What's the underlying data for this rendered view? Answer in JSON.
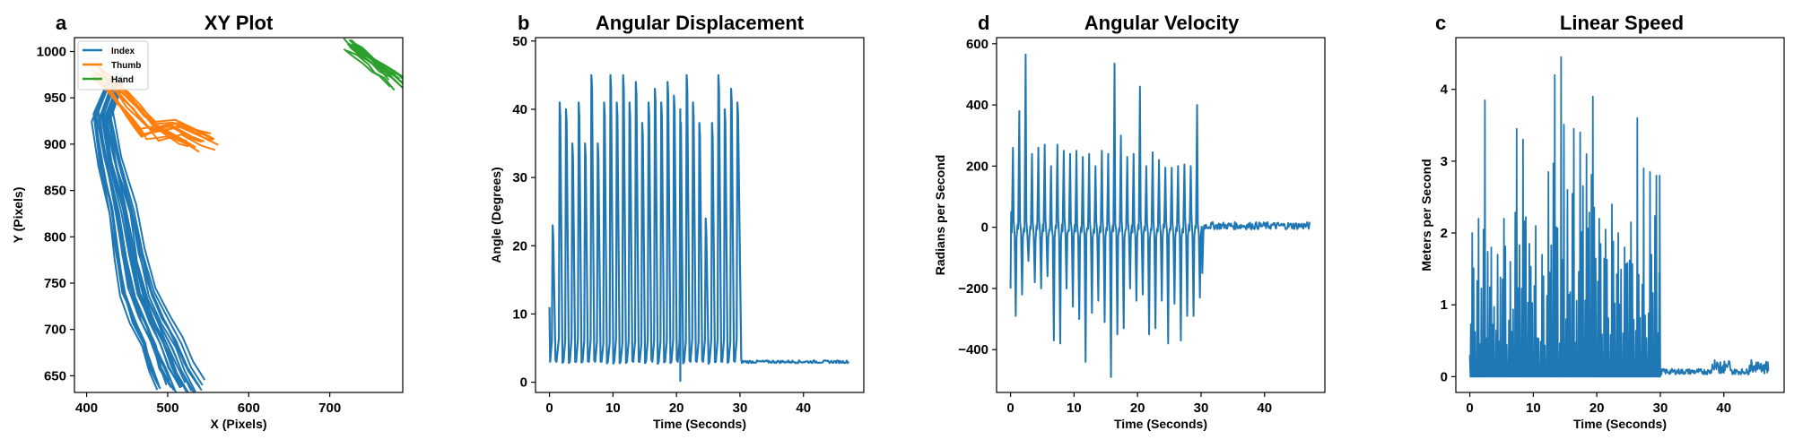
{
  "figure": {
    "panels": [
      {
        "id": "xy",
        "letter": "a",
        "title": "XY Plot",
        "xlabel": "X (Pixels)",
        "ylabel": "Y (Pixels)",
        "xlim": [
          385,
          790
        ],
        "ylim": [
          632,
          1015
        ],
        "xticks": [
          400,
          500,
          600,
          700
        ],
        "yticks": [
          650,
          700,
          750,
          800,
          850,
          900,
          950,
          1000
        ],
        "legend": {
          "placement": "top-left",
          "entries": [
            {
              "label": "Index",
              "color": "#1f77b4"
            },
            {
              "label": "Thumb",
              "color": "#ff7f0e"
            },
            {
              "label": "Hand",
              "color": "#2ca02c"
            }
          ]
        }
      },
      {
        "id": "angle",
        "letter": "b",
        "title": "Angular Displacement",
        "xlabel": "Time (Seconds)",
        "ylabel": "Angle (Degrees)",
        "xlim": [
          -2.2,
          49.5
        ],
        "ylim": [
          -1.5,
          50.5
        ],
        "xticks": [
          0,
          10,
          20,
          30,
          40
        ],
        "yticks": [
          0,
          10,
          20,
          30,
          40,
          50
        ]
      },
      {
        "id": "angvel",
        "letter": "d",
        "title": "Angular Velocity",
        "xlabel": "Time (Seconds)",
        "ylabel": "Radians per Second",
        "xlim": [
          -2.2,
          49.5
        ],
        "ylim": [
          -540,
          620
        ],
        "xticks": [
          0,
          10,
          20,
          30,
          40
        ],
        "yticks": [
          -400,
          -200,
          0,
          200,
          400,
          600
        ],
        "ytick_labels": [
          "−400",
          "−200",
          "0",
          "200",
          "400",
          "600"
        ]
      },
      {
        "id": "speed",
        "letter": "c",
        "title": "Linear Speed",
        "xlabel": "Time (Seconds)",
        "ylabel": "Meters per Second",
        "xlim": [
          -2.2,
          49.5
        ],
        "ylim": [
          -0.22,
          4.72
        ],
        "xticks": [
          0,
          10,
          20,
          30,
          40
        ],
        "yticks": [
          0,
          1,
          2,
          3,
          4
        ]
      }
    ]
  },
  "chart_data": [
    {
      "type": "line",
      "title": "XY Plot",
      "xlabel": "X (Pixels)",
      "ylabel": "Y (Pixels)",
      "xlim": [
        385,
        790
      ],
      "ylim": [
        632,
        1015
      ],
      "legend": "top-left",
      "series": [
        {
          "name": "Index",
          "color": "#1f77b4",
          "x": [
            437,
            420,
            430,
            445,
            455,
            465,
            480,
            495,
            505,
            518
          ],
          "y": [
            970,
            930,
            880,
            830,
            780,
            740,
            710,
            685,
            660,
            638
          ]
        },
        {
          "name": "Thumb",
          "color": "#ff7f0e",
          "x": [
            412,
            430,
            445,
            460,
            470,
            480,
            505,
            530,
            545
          ],
          "y": [
            978,
            965,
            950,
            935,
            925,
            915,
            920,
            908,
            903
          ]
        },
        {
          "name": "Hand",
          "color": "#2ca02c",
          "x": [
            722,
            735,
            748,
            760,
            772,
            785
          ],
          "y": [
            1008,
            1000,
            990,
            982,
            976,
            965
          ]
        }
      ]
    },
    {
      "type": "line",
      "title": "Angular Displacement",
      "xlabel": "Time (Seconds)",
      "ylabel": "Angle (Degrees)",
      "xlim": [
        -2.2,
        49.5
      ],
      "ylim": [
        -1.5,
        50.5
      ],
      "series": [
        {
          "color": "#1f77b4",
          "peak_times": [
            0.5,
            1.6,
            2.6,
            3.6,
            4.6,
            5.6,
            6.6,
            7.6,
            8.6,
            9.6,
            10.6,
            11.6,
            12.6,
            13.6,
            14.6,
            15.6,
            16.6,
            17.6,
            18.6,
            19.6,
            20.6,
            21.6,
            22.6,
            23.6,
            24.6,
            25.6,
            26.6,
            27.6,
            28.6,
            29.6
          ],
          "peak_values": [
            23,
            41,
            40,
            35,
            41,
            35,
            45,
            35,
            41,
            45,
            41,
            45,
            41,
            44,
            38,
            41,
            43,
            41,
            44,
            42,
            40,
            45,
            41,
            38,
            24,
            38,
            45,
            40,
            43,
            41
          ],
          "trough_value": 3,
          "baseline_after_30s": 3
        }
      ]
    },
    {
      "type": "line",
      "title": "Angular Velocity",
      "xlabel": "Time (Seconds)",
      "ylabel": "Radians per Second",
      "xlim": [
        -2.2,
        49.5
      ],
      "ylim": [
        -540,
        620
      ],
      "series": [
        {
          "color": "#1f77b4",
          "peak_values": [
            260,
            380,
            565,
            240,
            260,
            270,
            200,
            270,
            250,
            240,
            250,
            230,
            240,
            200,
            250,
            240,
            535,
            300,
            230,
            240,
            460,
            200,
            245,
            220,
            195,
            195,
            200,
            205,
            200,
            400
          ],
          "trough_values": [
            -290,
            -220,
            -110,
            -180,
            -200,
            -160,
            -370,
            -380,
            -200,
            -260,
            -300,
            -440,
            -280,
            -240,
            -310,
            -490,
            -350,
            -330,
            -200,
            -240,
            -220,
            -350,
            -330,
            -240,
            -380,
            -250,
            -370,
            -290,
            -290,
            -230
          ],
          "baseline_after_30s": 5
        }
      ]
    },
    {
      "type": "line",
      "title": "Linear Speed",
      "xlabel": "Time (Seconds)",
      "ylabel": "Meters per Second",
      "xlim": [
        -2.2,
        49.5
      ],
      "ylim": [
        -0.22,
        4.72
      ],
      "series": [
        {
          "color": "#1f77b4",
          "peak_values": [
            2.0,
            2.2,
            3.85,
            1.8,
            1.7,
            2.2,
            1.6,
            3.45,
            3.3,
            1.85,
            2.1,
            1.7,
            2.85,
            4.2,
            4.45,
            2.6,
            3.45,
            3.4,
            3.1,
            3.9,
            2.2,
            2.05,
            2.4,
            2.0,
            1.8,
            2.15,
            3.6,
            2.9,
            2.85,
            2.8
          ],
          "baseline_after_30s": 0.05
        }
      ]
    }
  ]
}
